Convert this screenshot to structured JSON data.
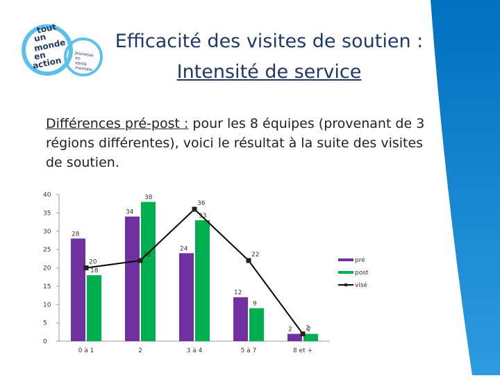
{
  "slide": {
    "title_line1": "Efficacité des visites de soutien :",
    "title_line2": "Intensité de service",
    "body_underlined": "Différences pré-post :",
    "body_rest": " pour les 8 équipes (provenant de 3 régions différentes), voici le résultat à la suite des visites de soutien.",
    "logo_text": [
      "tout",
      "un",
      "monde",
      "en",
      "action"
    ],
    "logo_subtext": [
      "Jeunesse",
      "en",
      "santé",
      "mentale"
    ]
  },
  "colors": {
    "pre": "#7030a0",
    "post": "#00b050",
    "vise": "#000000",
    "accent_band": "#0070c0",
    "logo_ring": "#5bc0eb",
    "title": "#1f3864"
  },
  "chart_data": {
    "type": "bar",
    "categories": [
      "0 à 1",
      "2",
      "3 à 4",
      "5 à 7",
      "8 et +"
    ],
    "series": [
      {
        "name": "pré",
        "type": "bar",
        "values": [
          28,
          34,
          24,
          12,
          2
        ]
      },
      {
        "name": "post",
        "type": "bar",
        "values": [
          18,
          38,
          33,
          9,
          2
        ]
      },
      {
        "name": "visé",
        "type": "line",
        "values": [
          20,
          22,
          36,
          22,
          2
        ]
      }
    ],
    "ylim": [
      0,
      40
    ],
    "yticks": [
      0,
      5,
      10,
      15,
      20,
      25,
      30,
      35,
      40
    ],
    "legend": "right",
    "grid": false
  }
}
